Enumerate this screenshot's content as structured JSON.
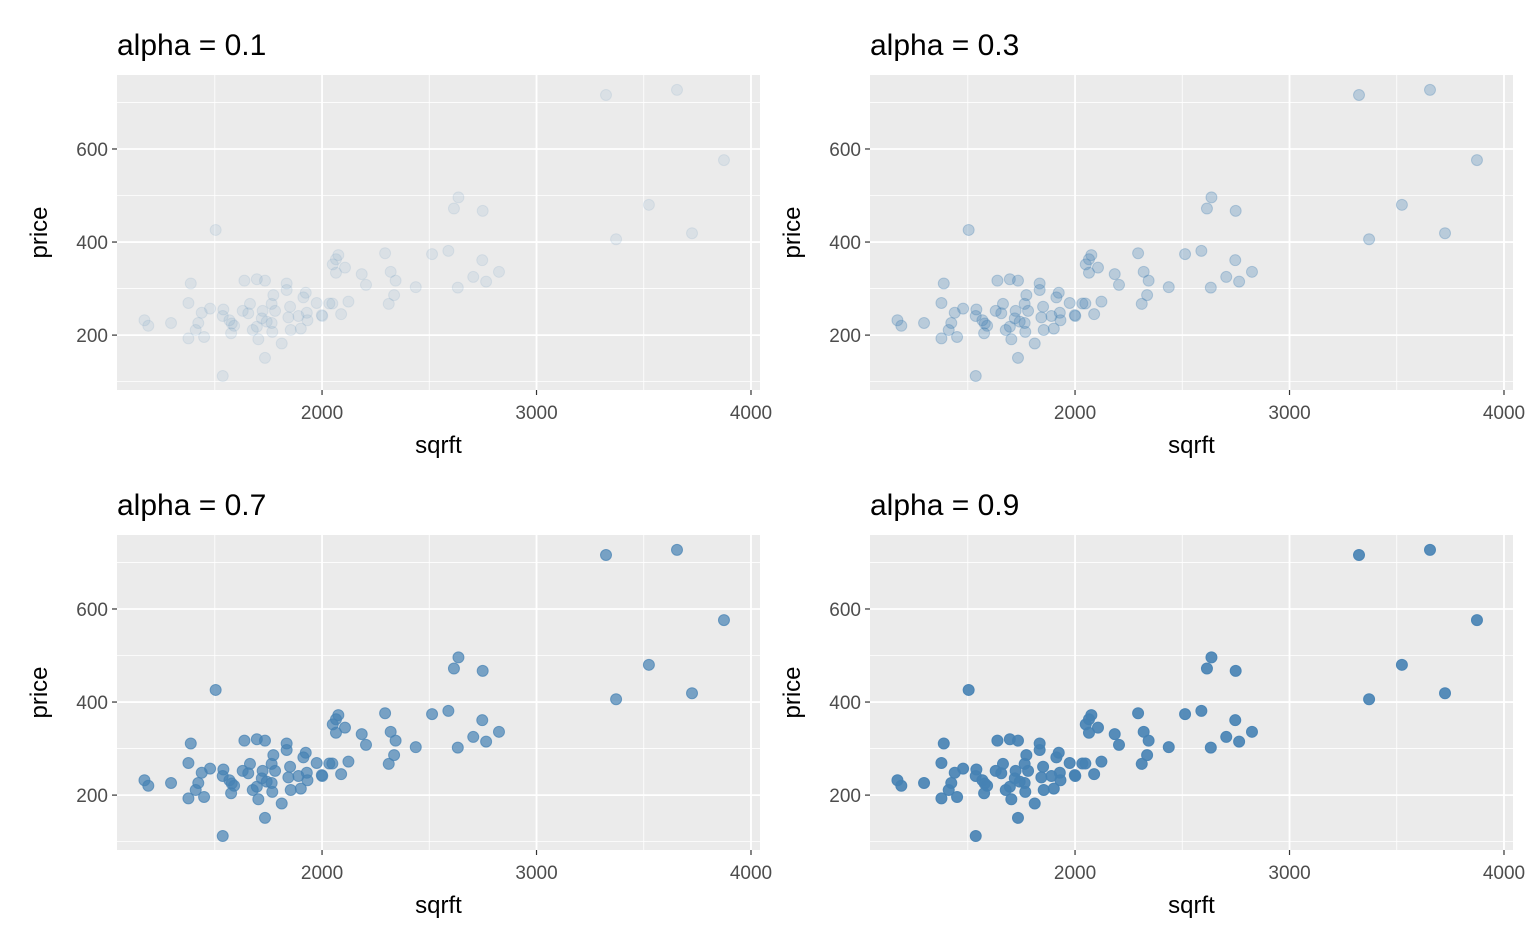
{
  "chart_data": {
    "type": "scatter",
    "layout": "2x2 facets",
    "color": "#4682b4",
    "panel_background": "#ebebeb",
    "xlabel": "sqrft",
    "ylabel": "price",
    "xlim": [
      1044,
      4042
    ],
    "ylim": [
      82,
      759
    ],
    "xticks": [
      2000,
      3000,
      4000
    ],
    "yticks": [
      200,
      400,
      600
    ],
    "panels": [
      {
        "title": "alpha = 0.1",
        "alpha": 0.1
      },
      {
        "title": "alpha = 0.3",
        "alpha": 0.3
      },
      {
        "title": "alpha = 0.7",
        "alpha": 0.7
      },
      {
        "title": "alpha = 0.9",
        "alpha": 0.9
      }
    ],
    "points": [
      [
        1504,
        426
      ],
      [
        1388,
        311
      ],
      [
        1638,
        317
      ],
      [
        1696,
        320
      ],
      [
        1734,
        317
      ],
      [
        1835,
        311
      ],
      [
        1835,
        297
      ],
      [
        1773,
        286
      ],
      [
        1924,
        291
      ],
      [
        1913,
        281
      ],
      [
        1975,
        269
      ],
      [
        2034,
        268
      ],
      [
        1377,
        269
      ],
      [
        1478,
        257
      ],
      [
        1439,
        248
      ],
      [
        1540,
        255
      ],
      [
        1537,
        241
      ],
      [
        1630,
        252
      ],
      [
        1664,
        267
      ],
      [
        1656,
        247
      ],
      [
        1723,
        252
      ],
      [
        1765,
        267
      ],
      [
        1781,
        252
      ],
      [
        1851,
        261
      ],
      [
        1843,
        238
      ],
      [
        1890,
        241
      ],
      [
        1929,
        248
      ],
      [
        1932,
        232
      ],
      [
        1999,
        243
      ],
      [
        1172,
        232
      ],
      [
        1190,
        220
      ],
      [
        1296,
        226
      ],
      [
        1423,
        226
      ],
      [
        1411,
        211
      ],
      [
        1377,
        193
      ],
      [
        1450,
        196
      ],
      [
        1568,
        232
      ],
      [
        1579,
        225
      ],
      [
        1590,
        220
      ],
      [
        1576,
        204
      ],
      [
        1677,
        211
      ],
      [
        1696,
        218
      ],
      [
        1703,
        191
      ],
      [
        1719,
        236
      ],
      [
        1742,
        229
      ],
      [
        1765,
        226
      ],
      [
        1768,
        207
      ],
      [
        1854,
        211
      ],
      [
        1901,
        214
      ],
      [
        1812,
        182
      ],
      [
        1734,
        151
      ],
      [
        1537,
        112
      ],
      [
        2636,
        496
      ],
      [
        2615,
        472
      ],
      [
        2749,
        467
      ],
      [
        2076,
        372
      ],
      [
        2065,
        363
      ],
      [
        2050,
        352
      ],
      [
        2107,
        345
      ],
      [
        2065,
        334
      ],
      [
        2185,
        331
      ],
      [
        2205,
        308
      ],
      [
        2294,
        376
      ],
      [
        2320,
        336
      ],
      [
        2343,
        317
      ],
      [
        2336,
        286
      ],
      [
        2311,
        267
      ],
      [
        2437,
        303
      ],
      [
        2513,
        374
      ],
      [
        2589,
        381
      ],
      [
        2747,
        361
      ],
      [
        2705,
        325
      ],
      [
        2825,
        336
      ],
      [
        2765,
        315
      ],
      [
        2633,
        302
      ],
      [
        2048,
        268
      ],
      [
        2123,
        272
      ],
      [
        2089,
        245
      ],
      [
        2001,
        241
      ],
      [
        3324,
        716
      ],
      [
        3655,
        727
      ],
      [
        3874,
        576
      ],
      [
        3524,
        480
      ],
      [
        3371,
        406
      ],
      [
        3725,
        419
      ]
    ]
  }
}
